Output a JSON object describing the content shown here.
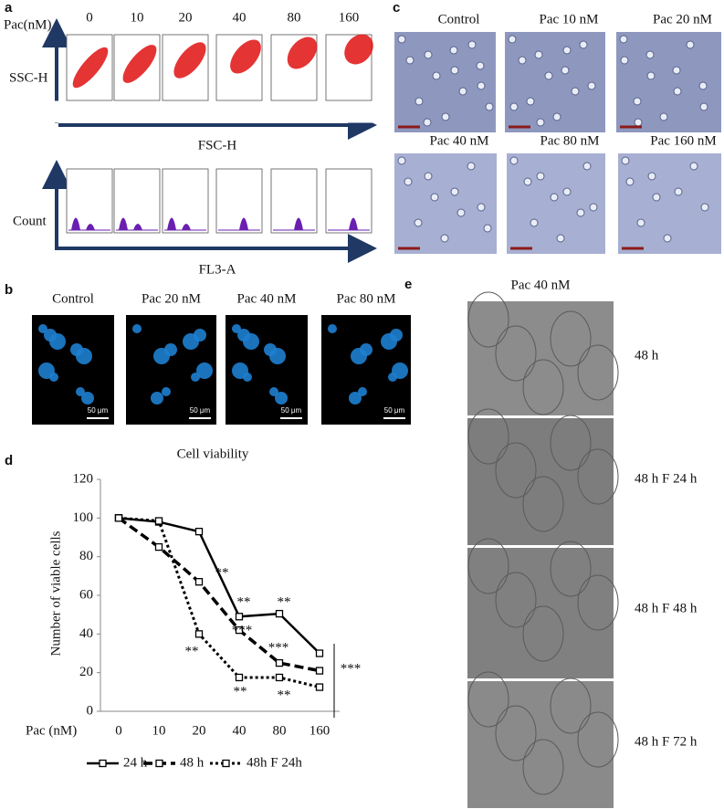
{
  "panel_a": {
    "label": "a",
    "pac_label": "Pac(nM)",
    "concentrations": [
      "0",
      "10",
      "20",
      "40",
      "80",
      "160"
    ],
    "y_label": "SSC-H",
    "x_label": "FSC-H",
    "count_label": "Count",
    "fl_label": "FL3-A"
  },
  "panel_b": {
    "label": "b",
    "conditions": [
      "Control",
      "Pac 20 nM",
      "Pac 40 nM",
      "Pac 80 nM"
    ],
    "scale_labels": [
      "50 μm",
      "50 μm",
      "50 μm",
      "50 μm"
    ]
  },
  "panel_c": {
    "label": "c",
    "conditions": [
      "Control",
      "Pac 10 nM",
      "Pac 20 nM",
      "Pac 40 nM",
      "Pac 80 nM",
      "Pac 160 nM"
    ]
  },
  "panel_d": {
    "label": "d"
  },
  "chart_data": {
    "type": "line",
    "title": "Cell viability",
    "y_label": "Number of viable cells",
    "x_label": "Pac (nM)",
    "categories": [
      "0",
      "10",
      "20",
      "40",
      "80",
      "160"
    ],
    "series": [
      {
        "name": "24 h",
        "color": "#000000",
        "style": "solid",
        "values": [
          100,
          98,
          93,
          49,
          50.5,
          30
        ]
      },
      {
        "name": "48 h",
        "color": "#000000",
        "style": "dashed",
        "values": [
          100,
          85,
          67,
          42,
          25,
          21
        ]
      },
      {
        "name": "48h F 24h",
        "color": "#000000",
        "style": "dotted",
        "values": [
          100,
          98.5,
          40,
          17.5,
          17.5,
          12.5
        ]
      }
    ],
    "ylim": [
      0,
      120
    ],
    "yticks": [
      0,
      20,
      40,
      60,
      80,
      100,
      120
    ],
    "grid": false,
    "annotations": [
      "**",
      "**",
      "**",
      "**",
      "***",
      "**",
      "***",
      "**",
      "***"
    ]
  },
  "panel_e": {
    "label": "e",
    "title": "Pac 40 nM",
    "times": [
      "48 h",
      "48 h F 24 h",
      "48 h F 48 h",
      "48 h F 72 h"
    ]
  }
}
